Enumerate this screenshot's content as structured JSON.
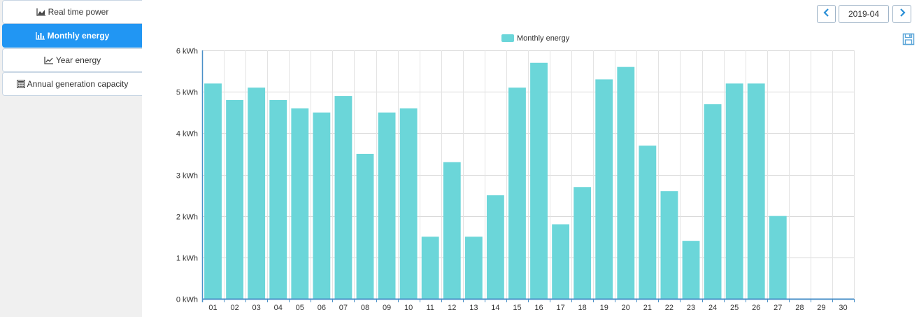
{
  "sidebar": {
    "tabs": [
      {
        "label": "Real time power",
        "icon": "area-chart-icon",
        "active": false
      },
      {
        "label": "Monthly energy",
        "icon": "bar-chart-icon",
        "active": true
      },
      {
        "label": "Year energy",
        "icon": "line-chart-icon",
        "active": false
      },
      {
        "label": "Annual generation capacity",
        "icon": "calculator-icon",
        "active": false
      }
    ]
  },
  "toolbar": {
    "period": "2019-04",
    "prev_icon": "chevron-left-icon",
    "next_icon": "chevron-right-icon",
    "save_icon": "floppy-disk-icon"
  },
  "colors": {
    "bar": "#6bd6d9",
    "active_tab": "#2196f3",
    "nav_icon": "#2b8fd6"
  },
  "chart_data": {
    "type": "bar",
    "categories": [
      "01",
      "02",
      "03",
      "04",
      "05",
      "06",
      "07",
      "08",
      "09",
      "10",
      "11",
      "12",
      "13",
      "14",
      "15",
      "16",
      "17",
      "18",
      "19",
      "20",
      "21",
      "22",
      "23",
      "24",
      "25",
      "26",
      "27",
      "28",
      "29",
      "30"
    ],
    "series": [
      {
        "name": "Monthly energy",
        "values": [
          5.2,
          4.8,
          5.1,
          4.8,
          4.6,
          4.5,
          4.9,
          3.5,
          4.5,
          4.6,
          1.5,
          3.3,
          1.5,
          2.5,
          5.1,
          5.7,
          1.8,
          2.7,
          5.3,
          5.6,
          3.7,
          2.6,
          1.4,
          4.7,
          5.2,
          5.2,
          2.0,
          0,
          0,
          0
        ]
      }
    ],
    "ylim": [
      0,
      6
    ],
    "y_ticks": [
      0,
      1,
      2,
      3,
      4,
      5,
      6
    ],
    "y_tick_labels": [
      "0 kWh",
      "1 kWh",
      "2 kWh",
      "3 kWh",
      "4 kWh",
      "5 kWh",
      "6 kWh"
    ],
    "grid": true,
    "legend": "top-center"
  }
}
